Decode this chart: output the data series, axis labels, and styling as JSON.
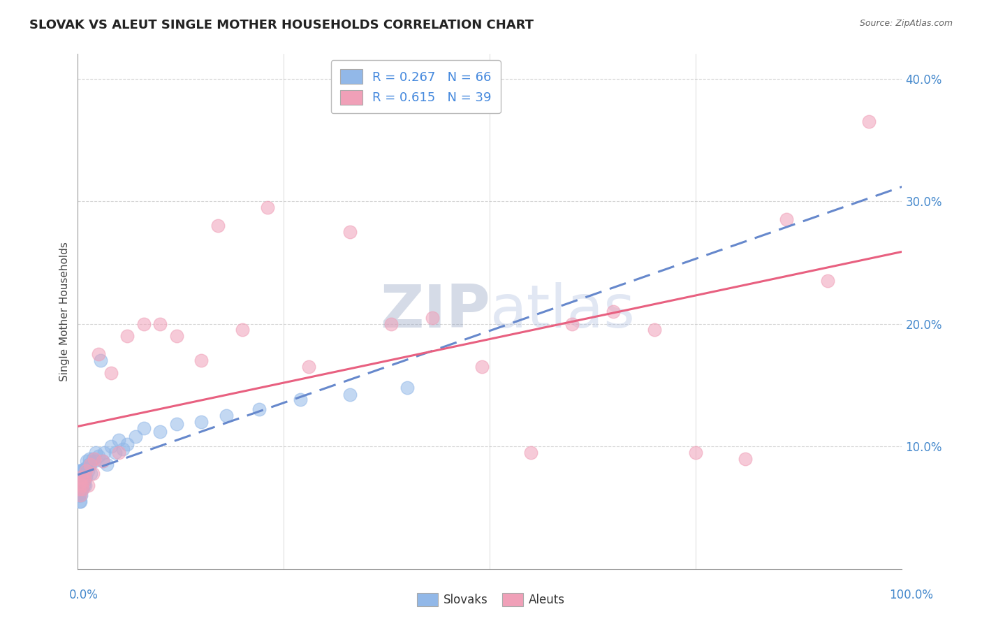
{
  "title": "SLOVAK VS ALEUT SINGLE MOTHER HOUSEHOLDS CORRELATION CHART",
  "source_text": "Source: ZipAtlas.com",
  "ylabel": "Single Mother Households",
  "x_min": 0.0,
  "x_max": 1.0,
  "y_min": 0.0,
  "y_max": 0.42,
  "yticks": [
    0.1,
    0.2,
    0.3,
    0.4
  ],
  "ytick_labels": [
    "10.0%",
    "20.0%",
    "30.0%",
    "40.0%"
  ],
  "slovak_R": 0.267,
  "slovak_N": 66,
  "aleut_R": 0.615,
  "aleut_N": 39,
  "slovak_color": "#92B8E8",
  "aleut_color": "#F0A0B8",
  "slovak_line_color": "#6688CC",
  "aleut_line_color": "#E86080",
  "legend_R_color": "#4488DD",
  "background_color": "#FFFFFF",
  "grid_color": "#CCCCCC",
  "watermark_color": "#C8D4E8",
  "slovak_x": [
    0.001,
    0.001,
    0.001,
    0.001,
    0.001,
    0.002,
    0.002,
    0.002,
    0.002,
    0.002,
    0.002,
    0.003,
    0.003,
    0.003,
    0.003,
    0.003,
    0.003,
    0.004,
    0.004,
    0.004,
    0.004,
    0.004,
    0.005,
    0.005,
    0.005,
    0.005,
    0.006,
    0.006,
    0.006,
    0.007,
    0.007,
    0.008,
    0.008,
    0.009,
    0.009,
    0.01,
    0.01,
    0.011,
    0.012,
    0.013,
    0.014,
    0.015,
    0.016,
    0.018,
    0.02,
    0.022,
    0.025,
    0.028,
    0.03,
    0.032,
    0.035,
    0.04,
    0.045,
    0.05,
    0.055,
    0.06,
    0.07,
    0.08,
    0.1,
    0.12,
    0.15,
    0.18,
    0.22,
    0.27,
    0.33,
    0.4
  ],
  "slovak_y": [
    0.07,
    0.075,
    0.065,
    0.06,
    0.08,
    0.068,
    0.072,
    0.065,
    0.078,
    0.06,
    0.055,
    0.07,
    0.075,
    0.065,
    0.055,
    0.08,
    0.068,
    0.07,
    0.075,
    0.065,
    0.08,
    0.06,
    0.075,
    0.07,
    0.08,
    0.065,
    0.075,
    0.08,
    0.065,
    0.078,
    0.068,
    0.082,
    0.072,
    0.075,
    0.068,
    0.082,
    0.075,
    0.088,
    0.08,
    0.085,
    0.09,
    0.085,
    0.078,
    0.09,
    0.088,
    0.095,
    0.092,
    0.17,
    0.088,
    0.095,
    0.085,
    0.1,
    0.095,
    0.105,
    0.098,
    0.102,
    0.108,
    0.115,
    0.112,
    0.118,
    0.12,
    0.125,
    0.13,
    0.138,
    0.142,
    0.148
  ],
  "aleut_x": [
    0.001,
    0.002,
    0.003,
    0.004,
    0.005,
    0.006,
    0.007,
    0.008,
    0.01,
    0.012,
    0.015,
    0.018,
    0.02,
    0.025,
    0.03,
    0.04,
    0.05,
    0.06,
    0.08,
    0.1,
    0.12,
    0.15,
    0.17,
    0.2,
    0.23,
    0.28,
    0.33,
    0.38,
    0.43,
    0.49,
    0.55,
    0.6,
    0.65,
    0.7,
    0.75,
    0.81,
    0.86,
    0.91,
    0.96
  ],
  "aleut_y": [
    0.065,
    0.07,
    0.06,
    0.075,
    0.068,
    0.065,
    0.072,
    0.075,
    0.08,
    0.068,
    0.085,
    0.078,
    0.09,
    0.175,
    0.088,
    0.16,
    0.095,
    0.19,
    0.2,
    0.2,
    0.19,
    0.17,
    0.28,
    0.195,
    0.295,
    0.165,
    0.275,
    0.2,
    0.205,
    0.165,
    0.095,
    0.2,
    0.21,
    0.195,
    0.095,
    0.09,
    0.285,
    0.235,
    0.365
  ]
}
